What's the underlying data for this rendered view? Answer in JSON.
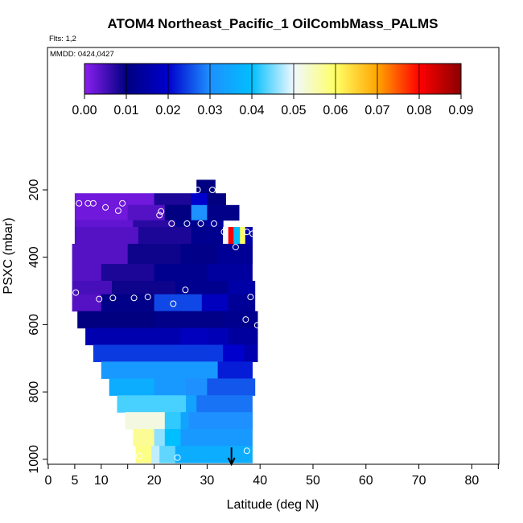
{
  "chart_data": {
    "type": "heatmap",
    "title": "ATOM4 Northeast_Pacific_1 OilCombMass_PALMS",
    "flights_label": "Flts: 1,2",
    "mmdd_label": "MMDD: 0424,0427",
    "xlabel": "Latitude (deg N)",
    "ylabel": "PSXC (mbar)",
    "xlim": [
      0,
      85
    ],
    "ylim": [
      1010,
      100
    ],
    "y_reversed": true,
    "grid": false,
    "x_ticks": [
      0,
      5,
      10,
      20,
      30,
      40,
      50,
      60,
      70,
      80
    ],
    "y_ticks": [
      200,
      400,
      600,
      800,
      1000
    ],
    "colorbar": {
      "min": 0.0,
      "max": 0.09,
      "ticks": [
        "0.00",
        "0.01",
        "0.02",
        "0.03",
        "0.04",
        "0.05",
        "0.06",
        "0.07",
        "0.08",
        "0.09"
      ],
      "colors": [
        "#8c1ef2",
        "#000080",
        "#0000cd",
        "#1e90ff",
        "#00bfff",
        "#f0f8ff",
        "#ffff66",
        "#ffa500",
        "#ff0000",
        "#8b0000"
      ]
    },
    "layers": [
      {
        "p_top": 170,
        "p_bot": 210,
        "segments": [
          {
            "lat": [
              28,
              31.5
            ],
            "val": 0.01
          }
        ]
      },
      {
        "p_top": 210,
        "p_bot": 245,
        "segments": [
          {
            "lat": [
              5,
              20
            ],
            "val": 0.002
          },
          {
            "lat": [
              20,
              27
            ],
            "val": 0.008
          },
          {
            "lat": [
              27,
              30
            ],
            "val": 0.02
          },
          {
            "lat": [
              30,
              33.5
            ],
            "val": 0.01
          }
        ]
      },
      {
        "p_top": 245,
        "p_bot": 290,
        "segments": [
          {
            "lat": [
              5,
              15
            ],
            "val": 0.002
          },
          {
            "lat": [
              15,
              22
            ],
            "val": 0.004
          },
          {
            "lat": [
              22,
              27
            ],
            "val": 0.01
          },
          {
            "lat": [
              27,
              30
            ],
            "val": 0.03
          },
          {
            "lat": [
              30,
              36
            ],
            "val": 0.011
          }
        ]
      },
      {
        "p_top": 290,
        "p_bot": 310,
        "segments": [
          {
            "lat": [
              5,
              16
            ],
            "val": 0.003
          },
          {
            "lat": [
              16,
              24
            ],
            "val": 0.007
          },
          {
            "lat": [
              24,
              30
            ],
            "val": 0.012
          },
          {
            "lat": [
              30,
              33
            ],
            "val": 0.014
          }
        ]
      },
      {
        "p_top": 310,
        "p_bot": 360,
        "segments": [
          {
            "lat": [
              5,
              17
            ],
            "val": 0.004
          },
          {
            "lat": [
              17,
              27
            ],
            "val": 0.008
          },
          {
            "lat": [
              27,
              33
            ],
            "val": 0.012
          },
          {
            "lat": [
              33,
              34
            ],
            "val": 0.05
          },
          {
            "lat": [
              34,
              35
            ],
            "val": 0.08
          },
          {
            "lat": [
              35,
              36.2
            ],
            "val": 0.04
          },
          {
            "lat": [
              36.2,
              37.2
            ],
            "val": 0.06
          },
          {
            "lat": [
              37.2,
              38.5
            ],
            "val": 0.015
          }
        ]
      },
      {
        "p_top": 360,
        "p_bot": 420,
        "segments": [
          {
            "lat": [
              4.5,
              15
            ],
            "val": 0.004
          },
          {
            "lat": [
              15,
              25
            ],
            "val": 0.009
          },
          {
            "lat": [
              25,
              32
            ],
            "val": 0.011
          },
          {
            "lat": [
              32,
              38.5
            ],
            "val": 0.013
          }
        ]
      },
      {
        "p_top": 420,
        "p_bot": 470,
        "segments": [
          {
            "lat": [
              4.5,
              10
            ],
            "val": 0.004
          },
          {
            "lat": [
              10,
              20
            ],
            "val": 0.008
          },
          {
            "lat": [
              20,
              30
            ],
            "val": 0.012
          },
          {
            "lat": [
              30,
              38.5
            ],
            "val": 0.014
          }
        ]
      },
      {
        "p_top": 470,
        "p_bot": 510,
        "segments": [
          {
            "lat": [
              4.5,
              12
            ],
            "val": 0.005
          },
          {
            "lat": [
              12,
              24
            ],
            "val": 0.009
          },
          {
            "lat": [
              24,
              34
            ],
            "val": 0.012
          },
          {
            "lat": [
              34,
              39
            ],
            "val": 0.015
          }
        ]
      },
      {
        "p_top": 510,
        "p_bot": 560,
        "segments": [
          {
            "lat": [
              4.5,
              10
            ],
            "val": 0.004
          },
          {
            "lat": [
              10,
              20
            ],
            "val": 0.011
          },
          {
            "lat": [
              20,
              29
            ],
            "val": 0.025
          },
          {
            "lat": [
              29,
              34
            ],
            "val": 0.018
          },
          {
            "lat": [
              34,
              39
            ],
            "val": 0.013
          }
        ]
      },
      {
        "p_top": 560,
        "p_bot": 610,
        "segments": [
          {
            "lat": [
              5.5,
              20
            ],
            "val": 0.01
          },
          {
            "lat": [
              20,
              33
            ],
            "val": 0.011
          },
          {
            "lat": [
              33,
              39.5
            ],
            "val": 0.012
          }
        ]
      },
      {
        "p_top": 610,
        "p_bot": 660,
        "segments": [
          {
            "lat": [
              7,
              25
            ],
            "val": 0.016
          },
          {
            "lat": [
              25,
              30
            ],
            "val": 0.018
          },
          {
            "lat": [
              30,
              34
            ],
            "val": 0.017
          },
          {
            "lat": [
              34,
              39.5
            ],
            "val": 0.014
          }
        ]
      },
      {
        "p_top": 660,
        "p_bot": 710,
        "segments": [
          {
            "lat": [
              8.5,
              33
            ],
            "val": 0.024
          },
          {
            "lat": [
              33,
              37
            ],
            "val": 0.02
          },
          {
            "lat": [
              37,
              39.5
            ],
            "val": 0.016
          }
        ]
      },
      {
        "p_top": 710,
        "p_bot": 760,
        "segments": [
          {
            "lat": [
              10,
              32
            ],
            "val": 0.032
          },
          {
            "lat": [
              32,
              38.5
            ],
            "val": 0.022
          }
        ]
      },
      {
        "p_top": 760,
        "p_bot": 810,
        "segments": [
          {
            "lat": [
              11.5,
              20
            ],
            "val": 0.036
          },
          {
            "lat": [
              20,
              26
            ],
            "val": 0.032
          },
          {
            "lat": [
              26,
              30
            ],
            "val": 0.03
          },
          {
            "lat": [
              30,
              39
            ],
            "val": 0.026
          }
        ]
      },
      {
        "p_top": 810,
        "p_bot": 860,
        "segments": [
          {
            "lat": [
              13,
              26
            ],
            "val": 0.043
          },
          {
            "lat": [
              26,
              28
            ],
            "val": 0.034
          },
          {
            "lat": [
              28,
              38.5
            ],
            "val": 0.028
          }
        ]
      },
      {
        "p_top": 860,
        "p_bot": 910,
        "segments": [
          {
            "lat": [
              14.5,
              22
            ],
            "val": 0.052
          },
          {
            "lat": [
              22,
              25
            ],
            "val": 0.042
          },
          {
            "lat": [
              25,
              26.5
            ],
            "val": 0.034
          },
          {
            "lat": [
              26.5,
              38.5
            ],
            "val": 0.03
          }
        ]
      },
      {
        "p_top": 910,
        "p_bot": 960,
        "segments": [
          {
            "lat": [
              16,
              20
            ],
            "val": 0.057
          },
          {
            "lat": [
              20,
              22
            ],
            "val": 0.046
          },
          {
            "lat": [
              22,
              25
            ],
            "val": 0.04
          },
          {
            "lat": [
              25,
              38.5
            ],
            "val": 0.032
          }
        ]
      },
      {
        "p_top": 960,
        "p_bot": 1010,
        "segments": [
          {
            "lat": [
              16.5,
              19.5
            ],
            "val": 0.058
          },
          {
            "lat": [
              19.5,
              21
            ],
            "val": 0.048
          },
          {
            "lat": [
              21,
              24
            ],
            "val": 0.044
          },
          {
            "lat": [
              24,
              38.5
            ],
            "val": 0.036
          }
        ]
      }
    ],
    "points": [
      {
        "lat": 28.2,
        "p": 200
      },
      {
        "lat": 31.0,
        "p": 200
      },
      {
        "lat": 5.8,
        "p": 240
      },
      {
        "lat": 7.5,
        "p": 240
      },
      {
        "lat": 8.5,
        "p": 240
      },
      {
        "lat": 14.0,
        "p": 240
      },
      {
        "lat": 10.8,
        "p": 252
      },
      {
        "lat": 13.2,
        "p": 262
      },
      {
        "lat": 21.3,
        "p": 264
      },
      {
        "lat": 21.0,
        "p": 275
      },
      {
        "lat": 23.3,
        "p": 300
      },
      {
        "lat": 26.2,
        "p": 300
      },
      {
        "lat": 28.8,
        "p": 300
      },
      {
        "lat": 31.3,
        "p": 300
      },
      {
        "lat": 33.2,
        "p": 325
      },
      {
        "lat": 37.5,
        "p": 325
      },
      {
        "lat": 38.6,
        "p": 330
      },
      {
        "lat": 35.4,
        "p": 370
      },
      {
        "lat": 5.2,
        "p": 505
      },
      {
        "lat": 25.9,
        "p": 497
      },
      {
        "lat": 3.9,
        "p": 528
      },
      {
        "lat": 9.6,
        "p": 524
      },
      {
        "lat": 12.2,
        "p": 521
      },
      {
        "lat": 16.2,
        "p": 521
      },
      {
        "lat": 18.8,
        "p": 518
      },
      {
        "lat": 23.6,
        "p": 538
      },
      {
        "lat": 38.2,
        "p": 518
      },
      {
        "lat": 37.3,
        "p": 585
      },
      {
        "lat": 39.5,
        "p": 602
      },
      {
        "lat": 17.2,
        "p": 990
      },
      {
        "lat": 24.4,
        "p": 995
      },
      {
        "lat": 37.5,
        "p": 975
      }
    ],
    "arrow_lat": 34.6
  }
}
